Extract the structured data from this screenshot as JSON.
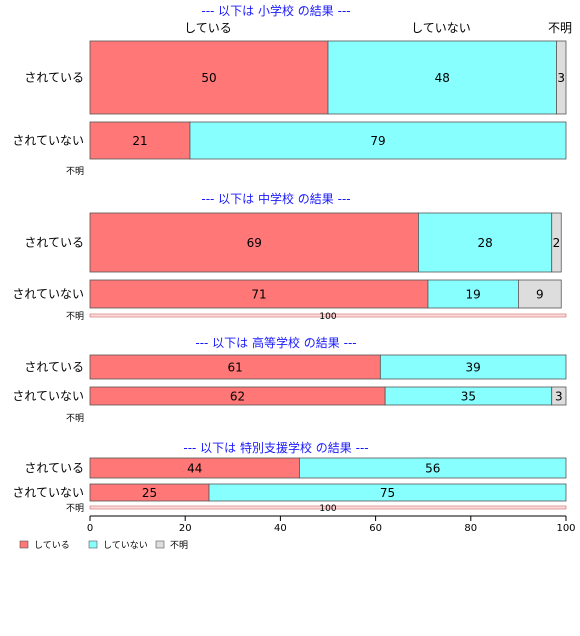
{
  "chart_data": {
    "type": "bar",
    "orientation": "horizontal",
    "stacked": true,
    "xlim": [
      0,
      100
    ],
    "xticks": [
      0,
      20,
      40,
      60,
      80,
      100
    ],
    "colors": {
      "している": "#ff7777",
      "していない": "#88ffff",
      "不明": "#dddddd"
    },
    "column_headers": [
      "している",
      "していない",
      "不明"
    ],
    "legend": {
      "position": "bottom-left",
      "entries": [
        "している",
        "していない",
        "不明"
      ]
    },
    "panels": [
      {
        "title": "--- 以下は 小学校 の結果 ---",
        "rows": [
          {
            "category": "されている",
            "values": [
              50,
              48,
              3
            ]
          },
          {
            "category": "されていない",
            "values": [
              21,
              79,
              0
            ]
          }
        ],
        "unknown_label": "不明",
        "unknown_value": null
      },
      {
        "title": "--- 以下は 中学校 の結果 ---",
        "rows": [
          {
            "category": "されている",
            "values": [
              69,
              28,
              2
            ]
          },
          {
            "category": "されていない",
            "values": [
              71,
              19,
              9
            ]
          }
        ],
        "unknown_label": "不明",
        "unknown_value": 100
      },
      {
        "title": "--- 以下は 高等学校 の結果 ---",
        "rows": [
          {
            "category": "されている",
            "values": [
              61,
              39,
              0
            ]
          },
          {
            "category": "されていない",
            "values": [
              62,
              35,
              3
            ]
          }
        ],
        "unknown_label": "不明",
        "unknown_value": null
      },
      {
        "title": "--- 以下は 特別支援学校 の結果 ---",
        "rows": [
          {
            "category": "されている",
            "values": [
              44,
              56,
              0
            ]
          },
          {
            "category": "されていない",
            "values": [
              25,
              75,
              0
            ]
          }
        ],
        "unknown_label": "不明",
        "unknown_value": 100
      }
    ]
  }
}
